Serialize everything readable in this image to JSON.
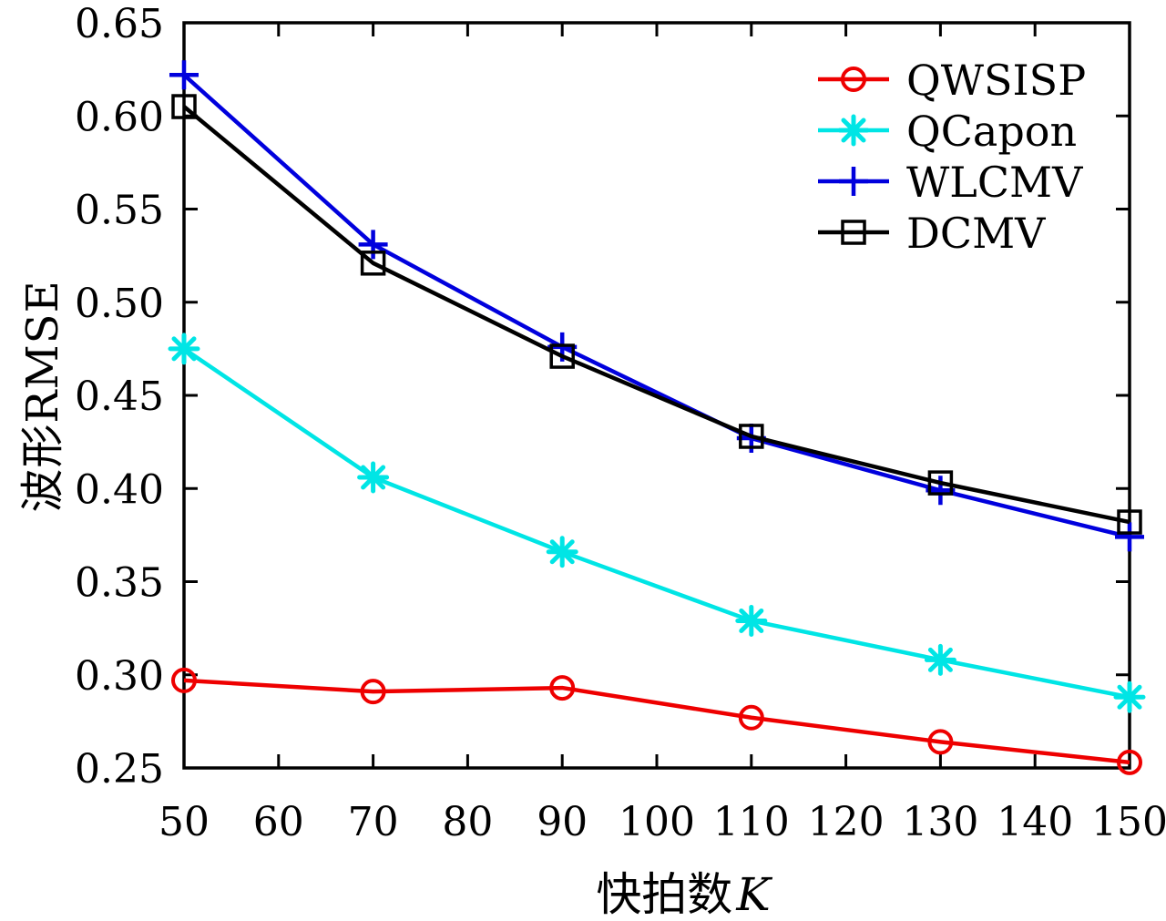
{
  "chart_data": {
    "type": "line",
    "title": "",
    "xlabel_text": "快拍数",
    "xlabel_var": "K",
    "ylabel": "波形RMSE",
    "xlim": [
      50,
      150
    ],
    "ylim": [
      0.25,
      0.65
    ],
    "x_ticks": [
      50,
      60,
      70,
      80,
      90,
      100,
      110,
      120,
      130,
      140,
      150
    ],
    "y_ticks": [
      0.25,
      0.3,
      0.35,
      0.4,
      0.45,
      0.5,
      0.55,
      0.6,
      0.65
    ],
    "grid": false,
    "legend_position": "top-right-inside",
    "frame_color": "#000000",
    "x": [
      50,
      70,
      90,
      110,
      130,
      150
    ],
    "series": [
      {
        "name": "QWSISP",
        "color": "#ee0000",
        "marker": "circle",
        "values": [
          0.297,
          0.291,
          0.293,
          0.277,
          0.264,
          0.253
        ]
      },
      {
        "name": "QCapon",
        "color": "#00e5e5",
        "marker": "asterisk",
        "values": [
          0.475,
          0.406,
          0.366,
          0.329,
          0.308,
          0.288
        ]
      },
      {
        "name": "WLCMV",
        "color": "#0000dd",
        "marker": "plus",
        "values": [
          0.622,
          0.531,
          0.476,
          0.427,
          0.399,
          0.374
        ]
      },
      {
        "name": "DCMV",
        "color": "#000000",
        "marker": "square",
        "values": [
          0.605,
          0.521,
          0.471,
          0.428,
          0.403,
          0.382
        ]
      }
    ]
  }
}
